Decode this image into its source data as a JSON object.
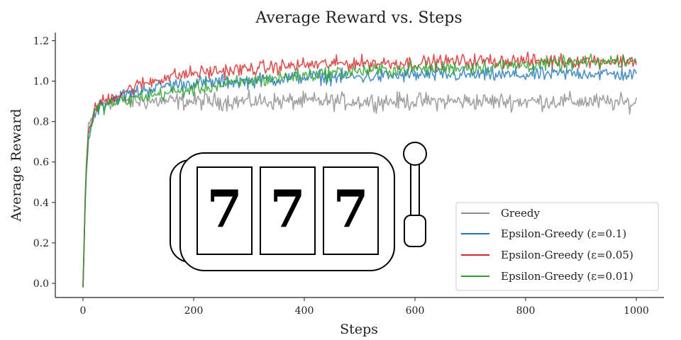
{
  "chart_data": {
    "type": "line",
    "title": "Average Reward vs. Steps",
    "xlabel": "Steps",
    "ylabel": "Average Reward",
    "xlim": [
      -50,
      1050
    ],
    "ylim": [
      -0.07,
      1.24
    ],
    "xticks": [
      0,
      200,
      400,
      600,
      800,
      1000
    ],
    "yticks": [
      0.0,
      0.2,
      0.4,
      0.6,
      0.8,
      1.0,
      1.2
    ],
    "xtick_labels": [
      "0",
      "200",
      "400",
      "600",
      "800",
      "1000"
    ],
    "ytick_labels": [
      "0.0",
      "0.2",
      "0.4",
      "0.6",
      "0.8",
      "1.0",
      "1.2"
    ],
    "legend_position": "lower-right",
    "grid": false,
    "series": [
      {
        "name": "Greedy",
        "color": "#8c8c8c",
        "x": [
          0,
          5,
          10,
          20,
          30,
          50,
          75,
          100,
          150,
          200,
          300,
          400,
          500,
          600,
          700,
          800,
          900,
          1000
        ],
        "y": [
          -0.02,
          0.55,
          0.76,
          0.85,
          0.88,
          0.9,
          0.91,
          0.9,
          0.9,
          0.9,
          0.9,
          0.9,
          0.9,
          0.9,
          0.9,
          0.9,
          0.9,
          0.89
        ],
        "noise": 0.03
      },
      {
        "name": "Epsilon-Greedy (ε=0.1)",
        "color": "#1f77b4",
        "x": [
          0,
          5,
          10,
          20,
          30,
          50,
          75,
          100,
          150,
          200,
          300,
          400,
          500,
          600,
          700,
          800,
          900,
          1000
        ],
        "y": [
          -0.02,
          0.5,
          0.72,
          0.84,
          0.88,
          0.91,
          0.93,
          0.95,
          0.98,
          0.99,
          1.0,
          1.02,
          1.02,
          1.03,
          1.03,
          1.03,
          1.04,
          1.03
        ],
        "noise": 0.025
      },
      {
        "name": "Epsilon-Greedy (ε=0.05)",
        "color": "#d62728",
        "x": [
          0,
          5,
          10,
          20,
          30,
          50,
          75,
          100,
          150,
          200,
          300,
          400,
          500,
          600,
          700,
          800,
          900,
          1000
        ],
        "y": [
          -0.02,
          0.52,
          0.74,
          0.85,
          0.89,
          0.92,
          0.95,
          0.98,
          1.02,
          1.04,
          1.06,
          1.08,
          1.09,
          1.09,
          1.1,
          1.1,
          1.1,
          1.1
        ],
        "noise": 0.025
      },
      {
        "name": "Epsilon-Greedy (ε=0.01)",
        "color": "#2ca02c",
        "x": [
          0,
          5,
          10,
          20,
          30,
          50,
          75,
          100,
          150,
          200,
          300,
          400,
          500,
          600,
          700,
          800,
          900,
          1000
        ],
        "y": [
          -0.02,
          0.52,
          0.73,
          0.84,
          0.87,
          0.89,
          0.9,
          0.92,
          0.94,
          0.96,
          1.0,
          1.03,
          1.05,
          1.06,
          1.07,
          1.08,
          1.09,
          1.1
        ],
        "noise": 0.025
      }
    ]
  },
  "slot_machine": {
    "icon": "slot-machine-icon",
    "reels": [
      "7",
      "7",
      "7"
    ]
  }
}
